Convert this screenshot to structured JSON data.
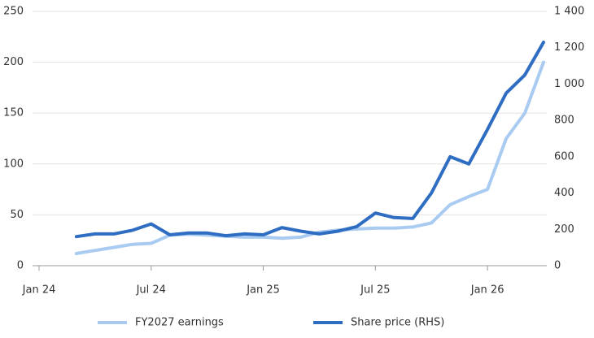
{
  "chart_data": {
    "type": "line",
    "x": [
      "2024-03",
      "2024-04",
      "2024-05",
      "2024-06",
      "2024-07",
      "2024-08",
      "2024-09",
      "2024-10",
      "2024-11",
      "2024-12",
      "2025-01",
      "2025-02",
      "2025-03",
      "2025-04",
      "2025-05",
      "2025-06",
      "2025-07",
      "2025-08",
      "2025-09",
      "2025-10",
      "2025-11",
      "2025-12",
      "2026-01",
      "2026-02",
      "2026-03",
      "2026-04"
    ],
    "xlim": [
      "2024-01",
      "2026-04"
    ],
    "xticks": [
      {
        "value": "2024-01",
        "label": "Jan 24"
      },
      {
        "value": "2024-07",
        "label": "Jul 24"
      },
      {
        "value": "2025-01",
        "label": "Jan 25"
      },
      {
        "value": "2025-07",
        "label": "Jul 25"
      },
      {
        "value": "2026-01",
        "label": "Jan 26"
      }
    ],
    "ylim": [
      0,
      250
    ],
    "yticks": [
      0,
      50,
      100,
      150,
      200,
      250
    ],
    "y2lim": [
      0,
      1400
    ],
    "y2ticks": [
      0,
      200,
      400,
      600,
      800,
      {
        "value": 1000,
        "label": "1 000"
      },
      {
        "value": 1200,
        "label": "1 200"
      },
      {
        "value": 1400,
        "label": "1 400"
      }
    ],
    "grid": true,
    "series": [
      {
        "name": "FY2027 earnings",
        "color": "#a9cbf2",
        "values": [
          12,
          15,
          18,
          21,
          22,
          30,
          31,
          30,
          29,
          28,
          28,
          27,
          28,
          33,
          35,
          36,
          37,
          37,
          38,
          42,
          60,
          68,
          75,
          125,
          150,
          200
        ]
      },
      {
        "name": "Share price (RHS)",
        "color": "#2e6dc2",
        "axis": "y2",
        "values": [
          160,
          175,
          175,
          195,
          230,
          170,
          180,
          180,
          165,
          175,
          170,
          210,
          190,
          175,
          190,
          215,
          290,
          265,
          260,
          400,
          600,
          560,
          750,
          950,
          1050,
          1230
        ]
      }
    ]
  }
}
